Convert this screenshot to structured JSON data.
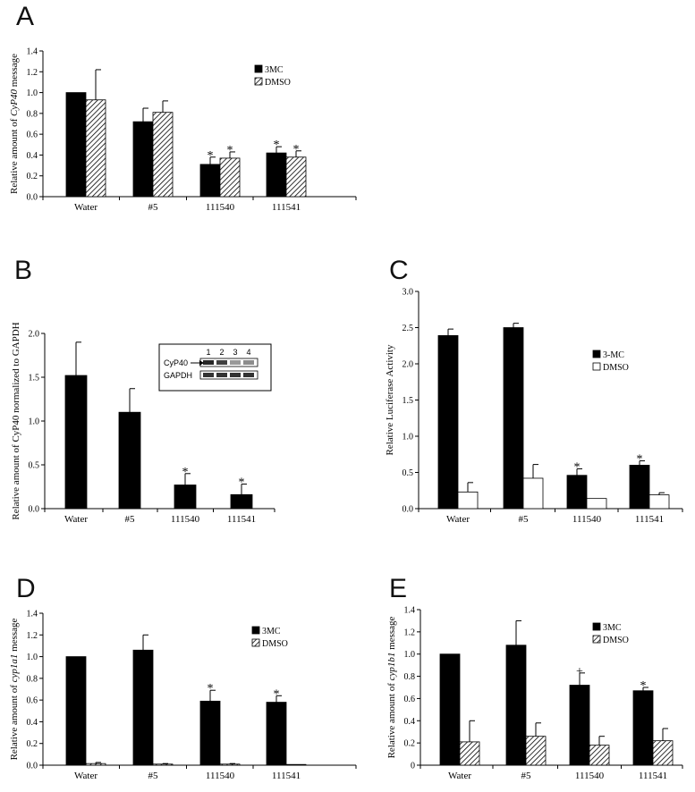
{
  "chart_data": [
    {
      "panel": "A",
      "type": "bar",
      "categories": [
        "Water",
        "#5",
        "111540",
        "111541"
      ],
      "series": [
        {
          "name": "3MC",
          "values": [
            1.0,
            0.72,
            0.31,
            0.42
          ],
          "errors": [
            0.0,
            0.13,
            0.07,
            0.06
          ],
          "fill": "solid"
        },
        {
          "name": "DMSO",
          "values": [
            0.93,
            0.81,
            0.37,
            0.38
          ],
          "errors": [
            0.29,
            0.11,
            0.06,
            0.06
          ],
          "fill": "hatch"
        }
      ],
      "stars": [
        [
          null,
          null
        ],
        [
          null,
          null
        ],
        [
          "*",
          "*"
        ],
        [
          "*",
          "*"
        ]
      ],
      "ylabel_prefix": "Relative amount of ",
      "ylabel_gene": "CyP40",
      "ylabel_suffix": " message",
      "ylim": [
        0,
        1.4
      ],
      "yticks": [
        "0.0",
        "0.2",
        "0.4",
        "0.6",
        "0.8",
        "1.0",
        "1.2",
        "1.4"
      ],
      "legend_position": "top-right"
    },
    {
      "panel": "B",
      "type": "bar",
      "categories": [
        "Water",
        "#5",
        "111540",
        "111541"
      ],
      "series": [
        {
          "values": [
            1.52,
            1.1,
            0.27,
            0.16
          ],
          "errors": [
            0.38,
            0.27,
            0.13,
            0.12
          ],
          "fill": "solid"
        }
      ],
      "stars": [
        [
          null
        ],
        [
          null
        ],
        [
          "*"
        ],
        [
          "*"
        ]
      ],
      "ylabel": "Relative amount of CyP40 normalized to GAPDH",
      "ylim": [
        0,
        2.0
      ],
      "yticks": [
        "0.0",
        "0.5",
        "1.0",
        "1.5",
        "2.0"
      ],
      "inset": {
        "lanes": [
          "1",
          "2",
          "3",
          "4"
        ],
        "rows": [
          {
            "label": "CyP40",
            "intensity": [
              0.85,
              0.75,
              0.4,
              0.45
            ]
          },
          {
            "label": "GAPDH",
            "intensity": [
              0.8,
              0.8,
              0.8,
              0.8
            ]
          }
        ]
      }
    },
    {
      "panel": "C",
      "type": "bar",
      "categories": [
        "Water",
        "#5",
        "111540",
        "111541"
      ],
      "series": [
        {
          "name": "3-MC",
          "values": [
            2.39,
            2.5,
            0.46,
            0.6
          ],
          "errors": [
            0.09,
            0.06,
            0.09,
            0.06
          ],
          "fill": "solid"
        },
        {
          "name": "DMSO",
          "values": [
            0.23,
            0.42,
            0.14,
            0.19
          ],
          "errors": [
            0.13,
            0.19,
            0.0,
            0.03
          ],
          "fill": "open"
        }
      ],
      "stars": [
        [
          null,
          null
        ],
        [
          null,
          null
        ],
        [
          "*",
          null
        ],
        [
          "*",
          null
        ]
      ],
      "ylabel": "Relative Luciferase Activity",
      "ylim": [
        0,
        3.0
      ],
      "yticks": [
        "0.0",
        "0.5",
        "1.0",
        "1.5",
        "2.0",
        "2.5",
        "3.0"
      ],
      "legend_position": "right"
    },
    {
      "panel": "D",
      "type": "bar",
      "categories": [
        "Water",
        "#5",
        "111540",
        "111541"
      ],
      "series": [
        {
          "name": "3MC",
          "values": [
            1.0,
            1.06,
            0.59,
            0.58
          ],
          "errors": [
            0.0,
            0.14,
            0.1,
            0.06
          ],
          "fill": "solid"
        },
        {
          "name": "DMSO",
          "values": [
            0.015,
            0.01,
            0.01,
            0.005
          ],
          "errors": [
            0.01,
            0.005,
            0.005,
            0.0
          ],
          "fill": "hatch"
        }
      ],
      "stars": [
        [
          null,
          null
        ],
        [
          null,
          null
        ],
        [
          "*",
          null
        ],
        [
          "*",
          null
        ]
      ],
      "ylabel_prefix": "Relative amount of ",
      "ylabel_gene": "cyp1a1",
      "ylabel_suffix": " message",
      "ylim": [
        0,
        1.4
      ],
      "yticks": [
        "0.0",
        "0.2",
        "0.4",
        "0.6",
        "0.8",
        "1.0",
        "1.2",
        "1.4"
      ],
      "legend_position": "top-right"
    },
    {
      "panel": "E",
      "type": "bar",
      "categories": [
        "Water",
        "#5",
        "111540",
        "111541"
      ],
      "series": [
        {
          "name": "3MC",
          "values": [
            1.0,
            1.08,
            0.72,
            0.67
          ],
          "errors": [
            0.0,
            0.22,
            0.11,
            0.03
          ],
          "fill": "solid"
        },
        {
          "name": "DMSO",
          "values": [
            0.21,
            0.26,
            0.18,
            0.22
          ],
          "errors": [
            0.19,
            0.12,
            0.08,
            0.11
          ],
          "fill": "hatch"
        }
      ],
      "stars": [
        [
          null,
          null
        ],
        [
          null,
          null
        ],
        [
          "+",
          null
        ],
        [
          "*",
          null
        ]
      ],
      "ylabel_prefix": "Relative amount of ",
      "ylabel_gene": "cyp1b1",
      "ylabel_suffix": "  message",
      "ylim": [
        0,
        1.4
      ],
      "yticks": [
        "0",
        "0.2",
        "0.4",
        "0.6",
        "0.8",
        "1.0",
        "1.2",
        "1.4"
      ],
      "legend_position": "top-right"
    }
  ]
}
